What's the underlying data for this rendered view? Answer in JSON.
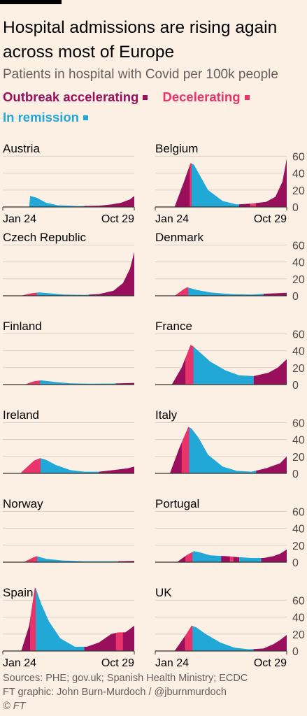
{
  "header": {
    "title": "Hospital admissions are rising again across most of Europe",
    "subtitle": "Patients in hospital with Covid per 100k people"
  },
  "legend": {
    "accelerating": "Outbreak accelerating",
    "decelerating": "Decelerating",
    "remission": "In remission"
  },
  "colors": {
    "accelerating": "#990f5c",
    "decelerating": "#e8336b",
    "remission": "#22a8d6",
    "background": "#fcf0e5",
    "grid": "#d9cfc7"
  },
  "footer": {
    "sources": "Sources: PHE; gov.uk; Spanish Health Ministry; ECDC",
    "credit": "FT graphic: John Burn-Murdoch / @jburnmurdoch",
    "copyright": "© FT"
  },
  "chart_data": {
    "type": "area",
    "y_ticks": [
      0,
      20,
      40,
      60
    ],
    "ylim": [
      0,
      62
    ],
    "x_tick_labels": [
      "Jan 24",
      "Oct 29"
    ],
    "x_range": [
      "2020-01-24",
      "2020-10-29"
    ],
    "phase_names": {
      "A": "Outbreak accelerating",
      "D": "Decelerating",
      "R": "In remission"
    },
    "panels": [
      {
        "name": "Austria",
        "show_x_labels": true,
        "show_y_ticks": false,
        "points": [
          [
            "2020-03-20",
            0
          ],
          [
            "2020-03-22",
            13
          ],
          [
            "2020-04-05",
            11
          ],
          [
            "2020-04-25",
            5
          ],
          [
            "2020-05-20",
            2
          ],
          [
            "2020-07-01",
            1
          ],
          [
            "2020-08-15",
            1.5
          ],
          [
            "2020-09-10",
            3
          ],
          [
            "2020-10-01",
            5
          ],
          [
            "2020-10-20",
            9
          ],
          [
            "2020-10-29",
            13
          ]
        ],
        "phases": [
          [
            "2020-03-20",
            "R"
          ],
          [
            "2020-07-15",
            "A"
          ]
        ]
      },
      {
        "name": "Belgium",
        "show_x_labels": true,
        "show_y_ticks": true,
        "points": [
          [
            "2020-03-05",
            0
          ],
          [
            "2020-03-25",
            30
          ],
          [
            "2020-04-08",
            52
          ],
          [
            "2020-04-15",
            50
          ],
          [
            "2020-04-25",
            40
          ],
          [
            "2020-05-15",
            20
          ],
          [
            "2020-06-15",
            7
          ],
          [
            "2020-07-15",
            3
          ],
          [
            "2020-08-15",
            4
          ],
          [
            "2020-09-15",
            6
          ],
          [
            "2020-10-05",
            12
          ],
          [
            "2020-10-20",
            30
          ],
          [
            "2020-10-29",
            57
          ]
        ],
        "phases": [
          [
            "2020-03-05",
            "A"
          ],
          [
            "2020-04-06",
            "D"
          ],
          [
            "2020-04-10",
            "R"
          ],
          [
            "2020-07-20",
            "A"
          ],
          [
            "2020-08-12",
            "D"
          ],
          [
            "2020-08-25",
            "A"
          ]
        ]
      },
      {
        "name": "Czech Republic",
        "show_x_labels": false,
        "show_y_ticks": false,
        "points": [
          [
            "2020-03-01",
            0
          ],
          [
            "2020-03-25",
            3
          ],
          [
            "2020-04-10",
            4
          ],
          [
            "2020-05-01",
            3
          ],
          [
            "2020-06-01",
            1.5
          ],
          [
            "2020-07-15",
            1
          ],
          [
            "2020-08-15",
            2
          ],
          [
            "2020-09-15",
            6
          ],
          [
            "2020-10-05",
            15
          ],
          [
            "2020-10-20",
            32
          ],
          [
            "2020-10-29",
            52
          ]
        ],
        "phases": [
          [
            "2020-03-01",
            "D"
          ],
          [
            "2020-04-05",
            "R"
          ],
          [
            "2020-07-25",
            "A"
          ]
        ]
      },
      {
        "name": "Denmark",
        "show_x_labels": false,
        "show_y_ticks": true,
        "points": [
          [
            "2020-03-05",
            0
          ],
          [
            "2020-03-25",
            8
          ],
          [
            "2020-04-01",
            10
          ],
          [
            "2020-04-20",
            7
          ],
          [
            "2020-05-20",
            4
          ],
          [
            "2020-07-01",
            2
          ],
          [
            "2020-08-15",
            1.5
          ],
          [
            "2020-09-15",
            2.5
          ],
          [
            "2020-10-29",
            3.5
          ]
        ],
        "phases": [
          [
            "2020-03-05",
            "D"
          ],
          [
            "2020-04-03",
            "R"
          ],
          [
            "2020-09-10",
            "A"
          ]
        ]
      },
      {
        "name": "Finland",
        "show_x_labels": false,
        "show_y_ticks": false,
        "points": [
          [
            "2020-03-10",
            0
          ],
          [
            "2020-03-30",
            4
          ],
          [
            "2020-04-15",
            5
          ],
          [
            "2020-05-15",
            3
          ],
          [
            "2020-06-15",
            1.5
          ],
          [
            "2020-08-01",
            1
          ],
          [
            "2020-09-15",
            1.2
          ],
          [
            "2020-10-29",
            2
          ]
        ],
        "phases": [
          [
            "2020-03-10",
            "D"
          ],
          [
            "2020-04-12",
            "R"
          ],
          [
            "2020-09-20",
            "A"
          ]
        ]
      },
      {
        "name": "France",
        "show_x_labels": false,
        "show_y_ticks": true,
        "points": [
          [
            "2020-02-28",
            0
          ],
          [
            "2020-03-20",
            20
          ],
          [
            "2020-04-08",
            47
          ],
          [
            "2020-04-14",
            45
          ],
          [
            "2020-04-30",
            37
          ],
          [
            "2020-05-20",
            27
          ],
          [
            "2020-06-20",
            17
          ],
          [
            "2020-07-20",
            11
          ],
          [
            "2020-08-20",
            10
          ],
          [
            "2020-09-20",
            14
          ],
          [
            "2020-10-10",
            20
          ],
          [
            "2020-10-29",
            30
          ]
        ],
        "phases": [
          [
            "2020-02-28",
            "A"
          ],
          [
            "2020-03-28",
            "D"
          ],
          [
            "2020-04-14",
            "R"
          ],
          [
            "2020-08-20",
            "A"
          ]
        ]
      },
      {
        "name": "Ireland",
        "show_x_labels": false,
        "show_y_ticks": false,
        "points": [
          [
            "2020-03-01",
            0
          ],
          [
            "2020-03-30",
            15
          ],
          [
            "2020-04-12",
            18
          ],
          [
            "2020-04-25",
            16
          ],
          [
            "2020-05-15",
            10
          ],
          [
            "2020-06-15",
            4
          ],
          [
            "2020-07-15",
            2
          ],
          [
            "2020-08-15",
            2
          ],
          [
            "2020-09-15",
            4
          ],
          [
            "2020-10-15",
            6
          ],
          [
            "2020-10-29",
            8
          ]
        ],
        "phases": [
          [
            "2020-03-01",
            "D"
          ],
          [
            "2020-04-13",
            "R"
          ],
          [
            "2020-08-15",
            "A"
          ]
        ]
      },
      {
        "name": "Italy",
        "show_x_labels": false,
        "show_y_ticks": true,
        "points": [
          [
            "2020-02-24",
            0
          ],
          [
            "2020-03-15",
            30
          ],
          [
            "2020-04-03",
            55
          ],
          [
            "2020-04-10",
            53
          ],
          [
            "2020-04-25",
            42
          ],
          [
            "2020-05-15",
            22
          ],
          [
            "2020-06-15",
            8
          ],
          [
            "2020-07-15",
            3
          ],
          [
            "2020-08-15",
            2
          ],
          [
            "2020-09-15",
            6
          ],
          [
            "2020-10-15",
            12
          ],
          [
            "2020-10-29",
            20
          ]
        ],
        "phases": [
          [
            "2020-02-24",
            "A"
          ],
          [
            "2020-03-20",
            "D"
          ],
          [
            "2020-04-05",
            "R"
          ],
          [
            "2020-08-25",
            "A"
          ]
        ]
      },
      {
        "name": "Norway",
        "show_x_labels": false,
        "show_y_ticks": false,
        "points": [
          [
            "2020-03-08",
            0
          ],
          [
            "2020-03-30",
            6
          ],
          [
            "2020-04-05",
            7
          ],
          [
            "2020-04-25",
            4
          ],
          [
            "2020-05-30",
            2
          ],
          [
            "2020-07-15",
            1
          ],
          [
            "2020-09-15",
            1
          ],
          [
            "2020-10-29",
            1.5
          ]
        ],
        "phases": [
          [
            "2020-03-08",
            "D"
          ],
          [
            "2020-04-06",
            "R"
          ],
          [
            "2020-09-25",
            "A"
          ]
        ]
      },
      {
        "name": "Portugal",
        "show_x_labels": false,
        "show_y_ticks": true,
        "points": [
          [
            "2020-03-10",
            0
          ],
          [
            "2020-03-30",
            8
          ],
          [
            "2020-04-15",
            13
          ],
          [
            "2020-04-25",
            12
          ],
          [
            "2020-05-20",
            8
          ],
          [
            "2020-06-25",
            7
          ],
          [
            "2020-07-15",
            6
          ],
          [
            "2020-08-15",
            5
          ],
          [
            "2020-09-10",
            5
          ],
          [
            "2020-09-30",
            7
          ],
          [
            "2020-10-15",
            10
          ],
          [
            "2020-10-29",
            15
          ]
        ],
        "phases": [
          [
            "2020-03-10",
            "A"
          ],
          [
            "2020-03-28",
            "D"
          ],
          [
            "2020-04-12",
            "R"
          ],
          [
            "2020-06-12",
            "A"
          ],
          [
            "2020-06-30",
            "D"
          ],
          [
            "2020-07-08",
            "A"
          ],
          [
            "2020-07-20",
            "R"
          ],
          [
            "2020-09-05",
            "A"
          ]
        ]
      },
      {
        "name": "Spain",
        "show_x_labels": true,
        "show_y_ticks": false,
        "points": [
          [
            "2020-03-03",
            0
          ],
          [
            "2020-03-20",
            30
          ],
          [
            "2020-04-01",
            75
          ],
          [
            "2020-04-03",
            74
          ],
          [
            "2020-04-15",
            55
          ],
          [
            "2020-05-01",
            35
          ],
          [
            "2020-05-25",
            15
          ],
          [
            "2020-06-25",
            5
          ],
          [
            "2020-07-20",
            5
          ],
          [
            "2020-08-15",
            10
          ],
          [
            "2020-09-10",
            20
          ],
          [
            "2020-09-25",
            22
          ],
          [
            "2020-10-10",
            22
          ],
          [
            "2020-10-20",
            26
          ],
          [
            "2020-10-29",
            30
          ]
        ],
        "phases": [
          [
            "2020-03-03",
            "A"
          ],
          [
            "2020-03-22",
            "D"
          ],
          [
            "2020-04-03",
            "R"
          ],
          [
            "2020-07-15",
            "A"
          ],
          [
            "2020-09-20",
            "D"
          ],
          [
            "2020-10-05",
            "A"
          ]
        ]
      },
      {
        "name": "UK",
        "show_x_labels": true,
        "show_y_ticks": true,
        "points": [
          [
            "2020-03-05",
            0
          ],
          [
            "2020-03-30",
            20
          ],
          [
            "2020-04-10",
            30
          ],
          [
            "2020-04-20",
            28
          ],
          [
            "2020-05-10",
            20
          ],
          [
            "2020-06-10",
            10
          ],
          [
            "2020-07-10",
            4
          ],
          [
            "2020-08-10",
            2
          ],
          [
            "2020-09-10",
            3
          ],
          [
            "2020-10-01",
            8
          ],
          [
            "2020-10-15",
            13
          ],
          [
            "2020-10-29",
            19
          ]
        ],
        "phases": [
          [
            "2020-03-05",
            "A"
          ],
          [
            "2020-03-27",
            "D"
          ],
          [
            "2020-04-12",
            "R"
          ],
          [
            "2020-08-20",
            "A"
          ]
        ]
      }
    ]
  }
}
